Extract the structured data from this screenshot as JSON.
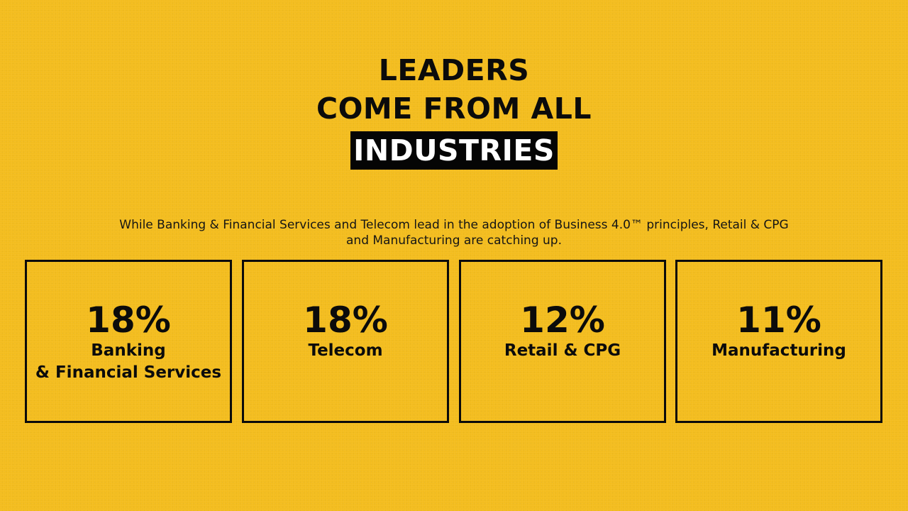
{
  "title": {
    "line1": "LEADERS",
    "line2": "COME FROM ALL",
    "highlight": "INDUSTRIES"
  },
  "subtitle": {
    "line1": "While Banking & Financial Services and Telecom lead in the adoption of Business 4.0™ principles, Retail & CPG",
    "line2": "and Manufacturing are catching up."
  },
  "cards": [
    {
      "percent": "18%",
      "label_line1": "Banking",
      "label_line2": "& Financial Services"
    },
    {
      "percent": "18%",
      "label_line1": "Telecom",
      "label_line2": ""
    },
    {
      "percent": "12%",
      "label_line1": "Retail & CPG",
      "label_line2": ""
    },
    {
      "percent": "11%",
      "label_line1": "Manufacturing",
      "label_line2": ""
    }
  ],
  "colors": {
    "background": "#f3bd1e",
    "text": "#0b0b0b",
    "highlight_bg": "#050505",
    "highlight_text": "#ffffff"
  }
}
